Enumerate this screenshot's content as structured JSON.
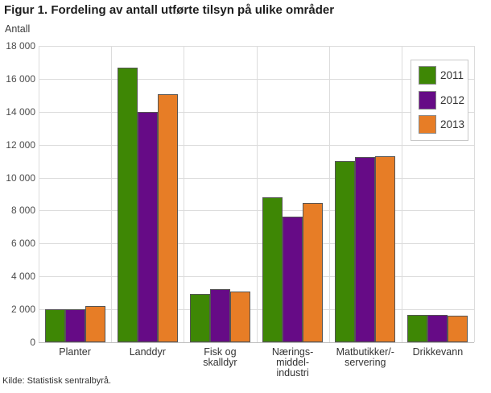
{
  "title": "Figur 1. Fordeling av antall utførte tilsyn på ulike områder",
  "y_axis_unit_label": "Antall",
  "source": "Kilde: Statistisk sentralbyrå.",
  "colors": {
    "series_2011": "#3e8705",
    "series_2012": "#660b86",
    "series_2013": "#e77d26",
    "grid": "#dcdcdc",
    "axis": "#bfbfbf",
    "bar_border": "#555555"
  },
  "chart_data": {
    "type": "bar",
    "title": "Figur 1. Fordeling av antall utførte tilsyn på ulike områder",
    "ylabel": "Antall",
    "categories": [
      "Planter",
      "Landdyr",
      "Fisk og skalldyr",
      "Næringsmiddelindustri",
      "Matbutikker/-servering",
      "Drikkevann"
    ],
    "category_label_lines": [
      [
        "Planter"
      ],
      [
        "Landdyr"
      ],
      [
        "Fisk og",
        "skalldyr"
      ],
      [
        "Nærings-",
        "middel-",
        "industri"
      ],
      [
        "Matbutikker/-",
        "servering"
      ],
      [
        "Drikkevann"
      ]
    ],
    "series": [
      {
        "name": "2011",
        "color": "#3e8705",
        "values": [
          2000,
          16700,
          2950,
          8800,
          11000,
          1650
        ]
      },
      {
        "name": "2012",
        "color": "#660b86",
        "values": [
          2000,
          14000,
          3250,
          7650,
          11250,
          1650
        ]
      },
      {
        "name": "2013",
        "color": "#e77d26",
        "values": [
          2200,
          15050,
          3100,
          8450,
          11300,
          1600
        ]
      }
    ],
    "ylim": [
      0,
      18000
    ],
    "ytick_step": 2000,
    "ytick_labels": [
      "0",
      "2 000",
      "4 000",
      "6 000",
      "8 000",
      "10 000",
      "12 000",
      "14 000",
      "16 000",
      "18 000"
    ],
    "grid": true,
    "legend_position": "top-right"
  }
}
